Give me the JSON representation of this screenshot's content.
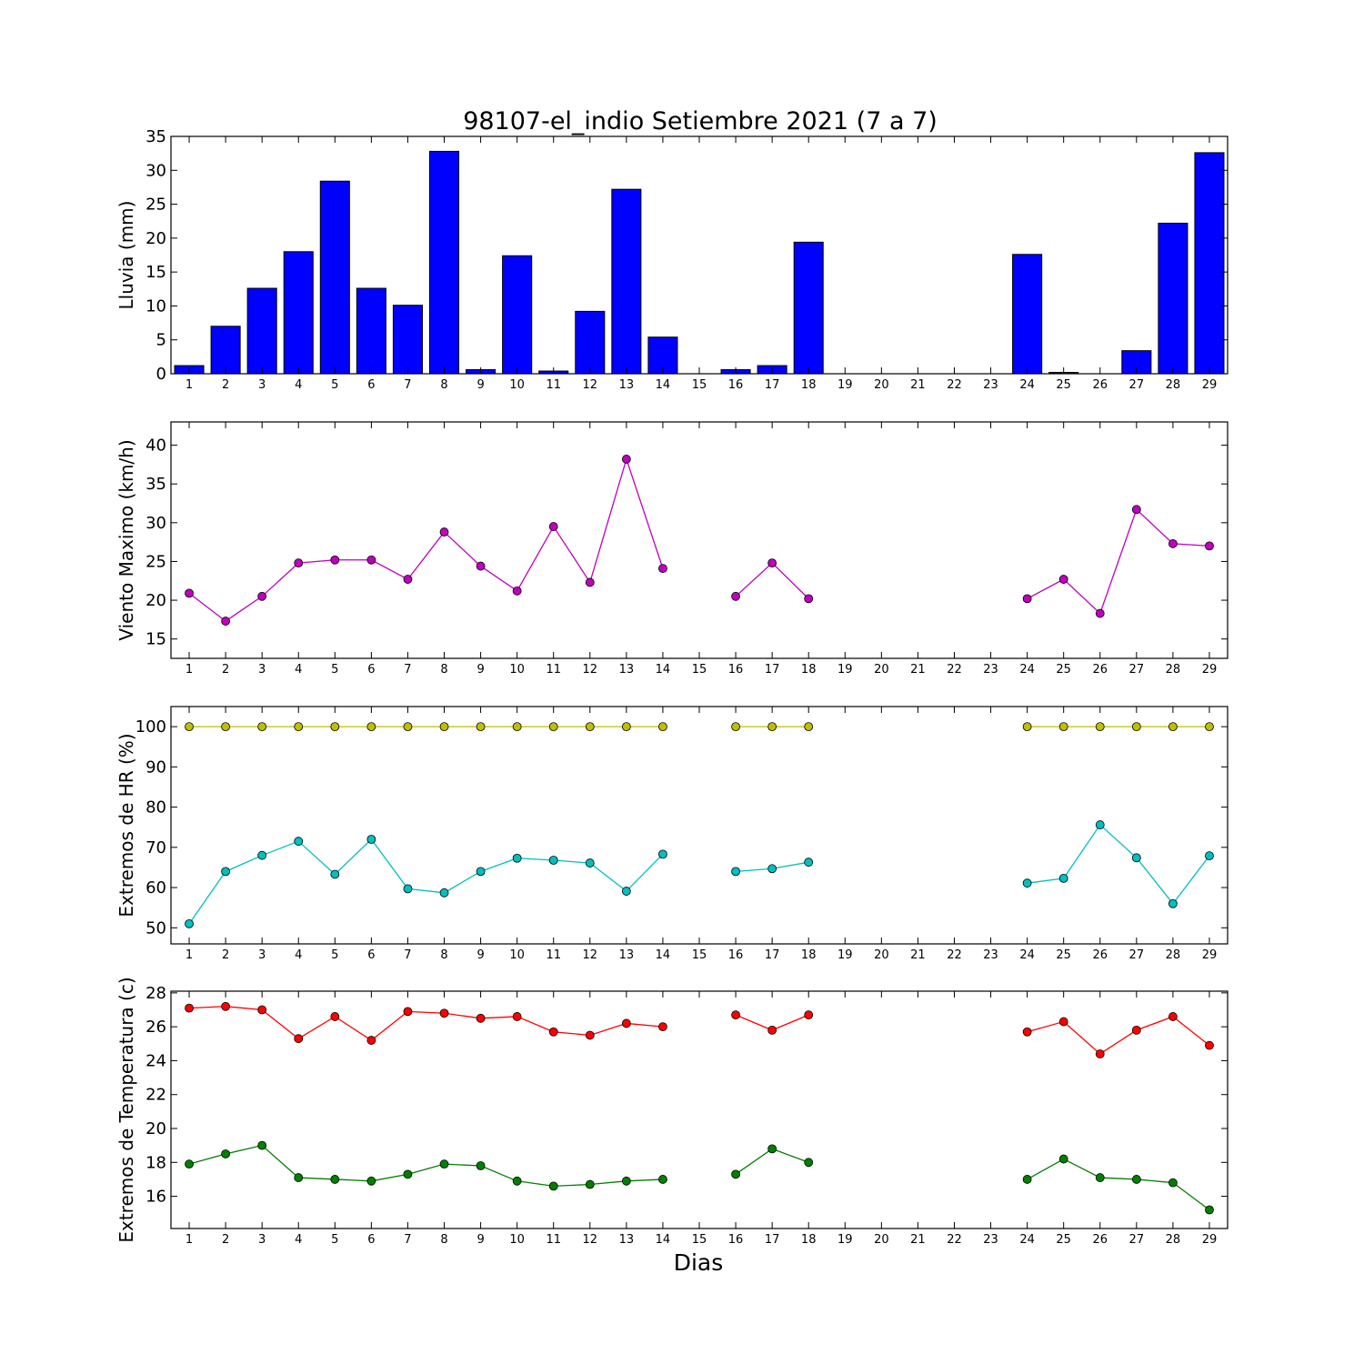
{
  "chart_data": {
    "title": "98107-el_indio Setiembre 2021  (7 a 7)",
    "xlabel": "Dias",
    "days": [
      1,
      2,
      3,
      4,
      5,
      6,
      7,
      8,
      9,
      10,
      11,
      12,
      13,
      14,
      15,
      16,
      17,
      18,
      19,
      20,
      21,
      22,
      23,
      24,
      25,
      26,
      27,
      28,
      29
    ],
    "panels": [
      {
        "type": "bar",
        "ylabel": "Lluvia (mm)",
        "ylim": [
          0,
          35
        ],
        "yticks": [
          0,
          5,
          10,
          15,
          20,
          25,
          30,
          35
        ],
        "series": [
          {
            "color": "#0000ff",
            "values": [
              1.2,
              7.0,
              12.6,
              18.0,
              28.4,
              12.6,
              10.1,
              32.8,
              0.6,
              17.4,
              0.4,
              9.2,
              27.2,
              5.4,
              0,
              0.6,
              1.2,
              19.4,
              0,
              0,
              0,
              0,
              0,
              17.6,
              0.2,
              0,
              3.4,
              22.2,
              32.6
            ]
          }
        ]
      },
      {
        "type": "line",
        "ylabel": "Viento Maximo (km/h)",
        "ylim": [
          12.5,
          43
        ],
        "yticks": [
          15,
          20,
          25,
          30,
          35,
          40
        ],
        "series": [
          {
            "color": "#bf00bf",
            "values": [
              20.9,
              17.3,
              20.5,
              24.8,
              25.2,
              25.2,
              22.7,
              28.8,
              24.4,
              21.2,
              29.5,
              22.3,
              38.2,
              24.1,
              null,
              20.5,
              24.8,
              20.2,
              null,
              null,
              null,
              null,
              null,
              20.2,
              22.7,
              18.3,
              31.7,
              27.3,
              27.0
            ]
          }
        ]
      },
      {
        "type": "line",
        "ylabel": "Extremos de HR (%)",
        "ylim": [
          46,
          105
        ],
        "yticks": [
          50,
          60,
          70,
          80,
          90,
          100
        ],
        "series": [
          {
            "color": "#bfbf00",
            "values": [
              100,
              100,
              100,
              100,
              100,
              100,
              100,
              100,
              100,
              100,
              100,
              100,
              100,
              100,
              null,
              100,
              100,
              100,
              null,
              null,
              null,
              null,
              null,
              100,
              100,
              100,
              100,
              100,
              100
            ]
          },
          {
            "color": "#00bfbf",
            "values": [
              51,
              64,
              68,
              71.5,
              63.3,
              72,
              59.7,
              58.7,
              64,
              67.3,
              66.8,
              66.1,
              59.1,
              68.3,
              null,
              64,
              64.7,
              66.3,
              null,
              null,
              null,
              null,
              null,
              61.1,
              62.3,
              75.6,
              67.4,
              56,
              67.9
            ]
          }
        ]
      },
      {
        "type": "line",
        "ylabel": "Extremos de Temperatura (c)",
        "ylim": [
          14.1,
          28.1
        ],
        "yticks": [
          16,
          18,
          20,
          22,
          24,
          26,
          28
        ],
        "series": [
          {
            "color": "#ff0000",
            "values": [
              27.1,
              27.2,
              27.0,
              25.3,
              26.6,
              25.2,
              26.9,
              26.8,
              26.5,
              26.6,
              25.7,
              25.5,
              26.2,
              26.0,
              null,
              26.7,
              25.8,
              26.7,
              null,
              null,
              null,
              null,
              null,
              25.7,
              26.3,
              24.4,
              25.8,
              26.6,
              24.9
            ]
          },
          {
            "color": "#008000",
            "values": [
              17.9,
              18.5,
              19.0,
              17.1,
              17.0,
              16.9,
              17.3,
              17.9,
              17.8,
              16.9,
              16.6,
              16.7,
              16.9,
              17.0,
              null,
              17.3,
              18.8,
              18.0,
              null,
              null,
              null,
              null,
              null,
              17.0,
              18.2,
              17.1,
              17.0,
              16.8,
              15.2
            ]
          }
        ]
      }
    ]
  }
}
